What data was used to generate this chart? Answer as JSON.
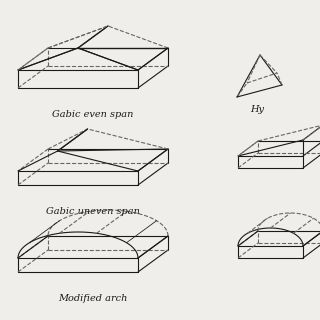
{
  "bg_color": "#f0eeeb",
  "line_color": "#1a1a1a",
  "dashed_color": "#666666",
  "labels": {
    "gable_even": "Gabic even span",
    "gable_uneven": "Gabic uneven span",
    "modified_arch": "Modified arch",
    "hyperbolic": "Hy"
  },
  "label_fontsize": 7,
  "label_font": "DejaVu Serif"
}
